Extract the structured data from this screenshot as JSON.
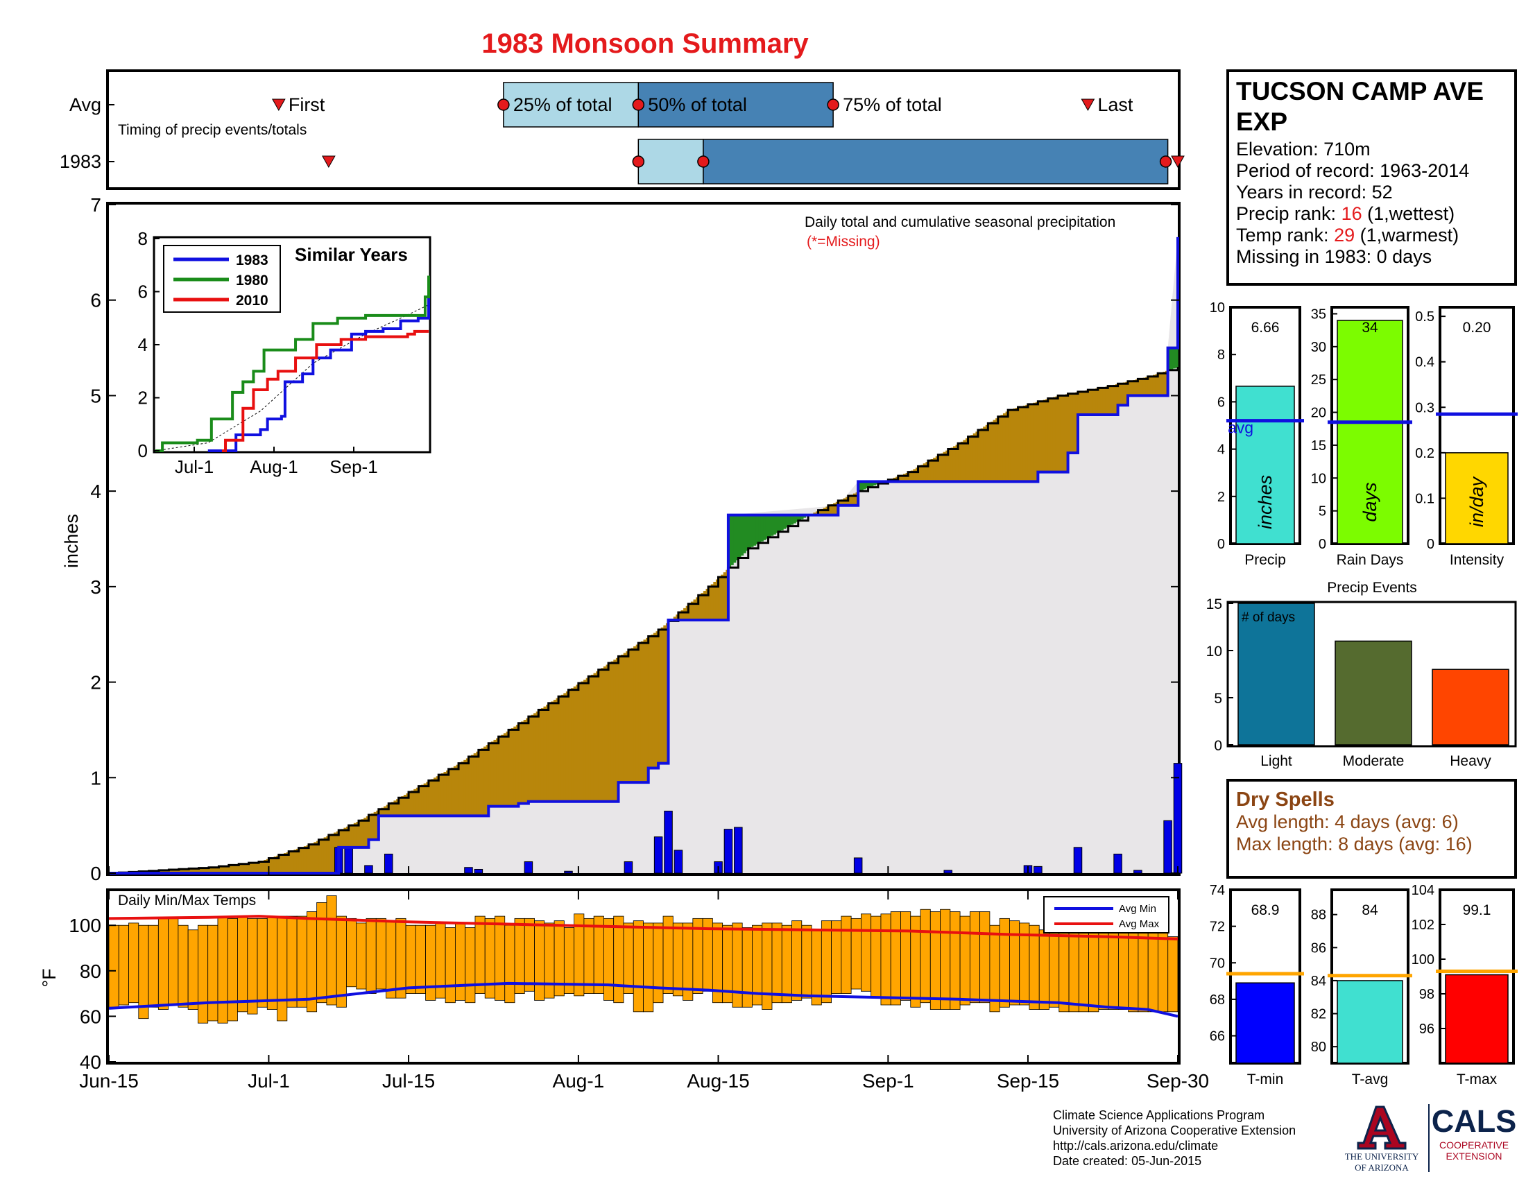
{
  "title": "1983 Monsoon Summary",
  "timing": {
    "row_labels": [
      "Avg",
      "1983"
    ],
    "caption": "Timing of precip events/totals",
    "labels": {
      "first": "First",
      "p25": "25% of total",
      "p50": "50% of total",
      "p75": "75% of total",
      "last": "Last"
    },
    "avg_days": {
      "first": 17,
      "p25": 39.5,
      "p50": 53,
      "p75": 72.5,
      "last": 98
    },
    "year_days": {
      "first": 22,
      "p25": 53,
      "p50": 59.5,
      "p75": 106,
      "last": 107
    }
  },
  "main_chart": {
    "annotation": "Daily total and cumulative seasonal precipitation",
    "missing_note": "(*=Missing)",
    "ylabel": "inches",
    "ylim": [
      0,
      7
    ],
    "yticks": [
      "0",
      "1",
      "2",
      "3",
      "4",
      "5",
      "6",
      "7"
    ],
    "x_ticks": [
      {
        "label": "Jun-15",
        "day": 0
      },
      {
        "label": "Jul-1",
        "day": 16
      },
      {
        "label": "Jul-15",
        "day": 30
      },
      {
        "label": "Aug-1",
        "day": 47
      },
      {
        "label": "Aug-15",
        "day": 61
      },
      {
        "label": "Sep-1",
        "day": 78
      },
      {
        "label": "Sep-15",
        "day": 92
      },
      {
        "label": "Sep-30",
        "day": 107
      }
    ],
    "colors": {
      "year_line": "#1010e0",
      "above": "#228b22",
      "below": "#b8860b",
      "fill": "#e8e6e8",
      "avg_line": "#000000"
    }
  },
  "chart_data": [
    {
      "type": "area",
      "title": "Daily total and cumulative seasonal precipitation",
      "ylabel": "inches",
      "ylim": [
        0,
        7
      ],
      "x_range_days": [
        0,
        107
      ],
      "cumulative_avg": [
        [
          0,
          0
        ],
        [
          5,
          0.03
        ],
        [
          10,
          0.06
        ],
        [
          15,
          0.12
        ],
        [
          20,
          0.3
        ],
        [
          25,
          0.55
        ],
        [
          30,
          0.85
        ],
        [
          35,
          1.15
        ],
        [
          40,
          1.5
        ],
        [
          45,
          1.85
        ],
        [
          50,
          2.2
        ],
        [
          55,
          2.55
        ],
        [
          60,
          3.0
        ],
        [
          64,
          3.4
        ],
        [
          70,
          3.75
        ],
        [
          75,
          4.0
        ],
        [
          80,
          4.2
        ],
        [
          85,
          4.5
        ],
        [
          90,
          4.85
        ],
        [
          95,
          5.0
        ],
        [
          100,
          5.1
        ],
        [
          104,
          5.2
        ],
        [
          107,
          5.3
        ]
      ],
      "cumulative_1983": [
        [
          0,
          0
        ],
        [
          23,
          0
        ],
        [
          23,
          0.27
        ],
        [
          26,
          0.35
        ],
        [
          27,
          0.6
        ],
        [
          37,
          0.6
        ],
        [
          38,
          0.7
        ],
        [
          41,
          0.73
        ],
        [
          42,
          0.75
        ],
        [
          51,
          0.95
        ],
        [
          54,
          1.1
        ],
        [
          55,
          1.15
        ],
        [
          56,
          2.65
        ],
        [
          57,
          2.65
        ],
        [
          58,
          2.65
        ],
        [
          61,
          2.65
        ],
        [
          62,
          3.3
        ],
        [
          62,
          3.75
        ],
        [
          73,
          3.85
        ],
        [
          75,
          4.1
        ],
        [
          93,
          4.2
        ],
        [
          96,
          4.4
        ],
        [
          97,
          4.8
        ],
        [
          101,
          4.9
        ],
        [
          102,
          5.0
        ],
        [
          106,
          5.05
        ],
        [
          106,
          5.5
        ],
        [
          107,
          6.66
        ]
      ],
      "daily_1983": [
        [
          23,
          0.27
        ],
        [
          24,
          0.27
        ],
        [
          26,
          0.08
        ],
        [
          28,
          0.2
        ],
        [
          36,
          0.06
        ],
        [
          37,
          0.04
        ],
        [
          42,
          0.12
        ],
        [
          46,
          0.02
        ],
        [
          52,
          0.12
        ],
        [
          55,
          0.38
        ],
        [
          56,
          0.65
        ],
        [
          57,
          0.24
        ],
        [
          61,
          0.12
        ],
        [
          62,
          0.46
        ],
        [
          63,
          0.48
        ],
        [
          75,
          0.16
        ],
        [
          84,
          0.03
        ],
        [
          92,
          0.08
        ],
        [
          93,
          0.07
        ],
        [
          97,
          0.27
        ],
        [
          101,
          0.2
        ],
        [
          103,
          0.03
        ],
        [
          106,
          0.55
        ],
        [
          107,
          1.15
        ]
      ]
    },
    {
      "type": "line",
      "title": "Similar Years",
      "categories": [
        "Jul-1",
        "Aug-1",
        "Sep-1"
      ],
      "ylim": [
        0,
        8
      ],
      "series": [
        {
          "name": "1983",
          "color": "#1010e0",
          "points": [
            [
              15,
              0
            ],
            [
              23,
              0
            ],
            [
              23,
              0.6
            ],
            [
              30,
              0.8
            ],
            [
              32,
              1.2
            ],
            [
              36,
              1.3
            ],
            [
              37,
              2.6
            ],
            [
              42,
              2.9
            ],
            [
              45,
              3.5
            ],
            [
              50,
              3.8
            ],
            [
              56,
              4.4
            ],
            [
              60,
              4.5
            ],
            [
              65,
              4.6
            ],
            [
              70,
              4.9
            ],
            [
              75,
              5.0
            ],
            [
              78,
              5.6
            ],
            [
              78,
              6.6
            ]
          ]
        },
        {
          "name": "1980",
          "color": "#1a8c1a",
          "points": [
            [
              0,
              0
            ],
            [
              2,
              0.3
            ],
            [
              12,
              0.4
            ],
            [
              16,
              1.2
            ],
            [
              22,
              2.2
            ],
            [
              25,
              2.6
            ],
            [
              28,
              3.0
            ],
            [
              31,
              3.8
            ],
            [
              40,
              4.2
            ],
            [
              45,
              4.8
            ],
            [
              52,
              5.0
            ],
            [
              60,
              5.1
            ],
            [
              72,
              5.1
            ],
            [
              77,
              5.8
            ],
            [
              78,
              6.6
            ]
          ]
        },
        {
          "name": "2010",
          "color": "#e81010",
          "points": [
            [
              19,
              0
            ],
            [
              20,
              0.4
            ],
            [
              25,
              1.6
            ],
            [
              28,
              2.3
            ],
            [
              32,
              2.7
            ],
            [
              35,
              3.0
            ],
            [
              40,
              3.5
            ],
            [
              46,
              4.0
            ],
            [
              53,
              4.2
            ],
            [
              60,
              4.3
            ],
            [
              70,
              4.3
            ],
            [
              72,
              4.4
            ],
            [
              74,
              4.5
            ],
            [
              78,
              4.5
            ]
          ]
        }
      ],
      "avg_line": [
        [
          0,
          0
        ],
        [
          15,
          0.3
        ],
        [
          30,
          1.5
        ],
        [
          45,
          3.3
        ],
        [
          60,
          4.4
        ],
        [
          70,
          5.0
        ],
        [
          78,
          5.5
        ]
      ]
    },
    {
      "type": "bar",
      "title": "Daily Min/Max Temps",
      "ylabel": "°F",
      "ylim": [
        40,
        115
      ],
      "yticks": [
        "40",
        "60",
        "80",
        "100"
      ],
      "daily_min": [
        64,
        65,
        66,
        59,
        64,
        63,
        65,
        64,
        63,
        57,
        58,
        57,
        58,
        62,
        61,
        64,
        63,
        58,
        64,
        64,
        62,
        66,
        65,
        64,
        73,
        72,
        70,
        72,
        68,
        68,
        70,
        70,
        67,
        68,
        66,
        67,
        66,
        70,
        68,
        67,
        66,
        70,
        71,
        67,
        68,
        69,
        70,
        69,
        70,
        70,
        67,
        66,
        70,
        62,
        62,
        66,
        70,
        69,
        67,
        70,
        71,
        66,
        66,
        64,
        64,
        65,
        63,
        66,
        66,
        67,
        68,
        65,
        66,
        70,
        70,
        72,
        71,
        68,
        65,
        65,
        67,
        64,
        66,
        63,
        63,
        63,
        65,
        66,
        66,
        62,
        64,
        65,
        65,
        63,
        63,
        64,
        62,
        62,
        62,
        62,
        63,
        63,
        63,
        62,
        62,
        62,
        62,
        62
      ],
      "daily_max": [
        100,
        100,
        101,
        100,
        100,
        103,
        103,
        100,
        98,
        100,
        100,
        104,
        103,
        104,
        103,
        103,
        104,
        104,
        104,
        104,
        106,
        110,
        113,
        104,
        103,
        101,
        103,
        103,
        102,
        103,
        100,
        100,
        100,
        101,
        99,
        101,
        99,
        104,
        103,
        104,
        100,
        103,
        103,
        102,
        101,
        102,
        99,
        105,
        103,
        104,
        103,
        104,
        101,
        102,
        101,
        101,
        104,
        101,
        101,
        103,
        103,
        101,
        100,
        101,
        99,
        100,
        101,
        101,
        100,
        102,
        100,
        98,
        102,
        102,
        104,
        103,
        105,
        104,
        105,
        106,
        106,
        104,
        107,
        106,
        107,
        106,
        104,
        106,
        106,
        100,
        103,
        102,
        101,
        100,
        98,
        99,
        100,
        101,
        102,
        97,
        99,
        98,
        97,
        99,
        98,
        98,
        97,
        95
      ],
      "avg_min": [
        [
          0,
          63.5
        ],
        [
          10,
          66
        ],
        [
          20,
          67.5
        ],
        [
          25,
          70
        ],
        [
          30,
          72.5
        ],
        [
          40,
          74.5
        ],
        [
          50,
          73.8
        ],
        [
          55,
          72.5
        ],
        [
          60,
          71.5
        ],
        [
          65,
          70
        ],
        [
          70,
          69
        ],
        [
          75,
          68.5
        ],
        [
          85,
          67.5
        ],
        [
          95,
          66
        ],
        [
          100,
          64
        ],
        [
          104,
          63
        ],
        [
          107,
          60
        ]
      ],
      "avg_max": [
        [
          0,
          103
        ],
        [
          10,
          103.5
        ],
        [
          15,
          104
        ],
        [
          20,
          103
        ],
        [
          30,
          101.5
        ],
        [
          40,
          100.5
        ],
        [
          50,
          99.5
        ],
        [
          60,
          98.5
        ],
        [
          70,
          98
        ],
        [
          80,
          97.5
        ],
        [
          90,
          96
        ],
        [
          95,
          95.5
        ],
        [
          100,
          95
        ],
        [
          107,
          94
        ]
      ],
      "legend": [
        "Avg Min",
        "Avg Max"
      ]
    },
    {
      "type": "bar",
      "title": "Precip",
      "value": 6.66,
      "avg": 5.2,
      "ylim": [
        0,
        10
      ],
      "yticks": [
        "0",
        "2",
        "4",
        "6",
        "8",
        "10"
      ],
      "unit_label": "inches",
      "value_label": "6.66",
      "avg_label": "avg",
      "color": "#40e0d0"
    },
    {
      "type": "bar",
      "title": "Rain Days",
      "value": 34,
      "avg": 18.5,
      "ylim": [
        0,
        36
      ],
      "yticks": [
        "0",
        "5",
        "10",
        "15",
        "20",
        "25",
        "30",
        "35"
      ],
      "unit_label": "days",
      "value_label": "34",
      "color": "#7cfc00"
    },
    {
      "type": "bar",
      "title": "Intensity",
      "value": 0.2,
      "avg": 0.285,
      "ylim": [
        0,
        0.52
      ],
      "yticks": [
        "0",
        "0.1",
        "0.2",
        "0.3",
        "0.4",
        "0.5"
      ],
      "unit_label": "in/day",
      "value_label": "0.20",
      "color": "#ffd700"
    },
    {
      "type": "bar",
      "title": "Precip Events",
      "categories": [
        "Light",
        "Moderate",
        "Heavy"
      ],
      "values": [
        15,
        11,
        8
      ],
      "colors": [
        "#0e7499",
        "#556b2f",
        "#ff4500"
      ],
      "ylim": [
        0,
        15
      ],
      "yticks": [
        "0",
        "5",
        "10",
        "15"
      ],
      "annotation": "# of days"
    },
    {
      "type": "bar",
      "title": "T-min",
      "value": 68.9,
      "avg": 69.4,
      "ylim": [
        64.5,
        74
      ],
      "yticks": [
        "66",
        "68",
        "70",
        "72",
        "74"
      ],
      "value_label": "68.9",
      "color": "#0000ff"
    },
    {
      "type": "bar",
      "title": "T-avg",
      "value": 84,
      "avg": 84.3,
      "ylim": [
        79,
        89.5
      ],
      "yticks": [
        "80",
        "82",
        "84",
        "86",
        "88"
      ],
      "value_label": "84",
      "color": "#40e0d0"
    },
    {
      "type": "bar",
      "title": "T-max",
      "value": 99.1,
      "avg": 99.3,
      "ylim": [
        94,
        104
      ],
      "yticks": [
        "96",
        "98",
        "100",
        "102",
        "104"
      ],
      "value_label": "99.1",
      "color": "#ff0000"
    }
  ],
  "station": {
    "name_line1": "TUCSON CAMP AVE",
    "name_line2": "EXP",
    "elevation": "Elevation: 710m",
    "period": "Period of record: 1963-2014",
    "years": "Years in record: 52",
    "precip_rank_prefix": "Precip rank: ",
    "precip_rank": "16",
    "precip_rank_suffix": " (1,wettest)",
    "temp_rank_prefix": "Temp rank: ",
    "temp_rank": "29",
    "temp_rank_suffix": " (1,warmest)",
    "missing": "Missing in 1983: 0 days"
  },
  "dry_spells": {
    "title": "Dry Spells",
    "avg_length": "Avg length: 4 days (avg: 6)",
    "max_length": "Max length: 8 days (avg: 16)",
    "color": "#8b4513"
  },
  "footer": {
    "line1": "Climate Science Applications Program",
    "line2": "University of Arizona Cooperative Extension",
    "line3": "http://cals.arizona.edu/climate",
    "line4": " Date created: 05-Jun-2015",
    "ua_logo_line1": "THE UNIVERSITY",
    "ua_logo_line2": "OF ARIZONA",
    "cals_logo": "CALS",
    "cals_sub1": "COOPERATIVE",
    "cals_sub2": "EXTENSION"
  }
}
